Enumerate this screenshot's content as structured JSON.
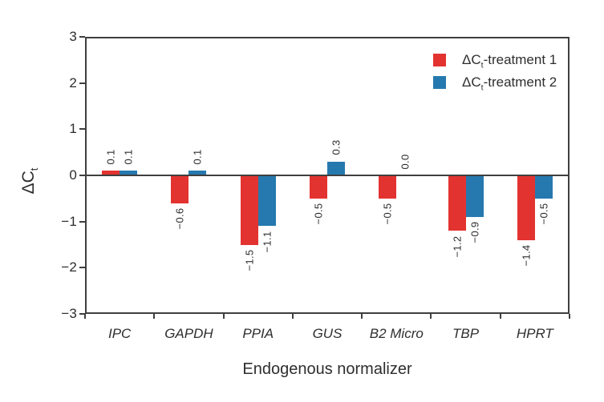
{
  "figure": {
    "background": "#ffffff",
    "axis_color": "#3f3f3f",
    "text_color": "#2e2e2e"
  },
  "chart_data": {
    "type": "bar",
    "title": "",
    "xlabel": "Endogenous normalizer",
    "ylabel": "ΔCt",
    "ylabel_parts": {
      "pre": "ΔC",
      "sub": "t"
    },
    "categories": [
      "IPC",
      "GAPDH",
      "PPIA",
      "GUS",
      "B2 Micro",
      "TBP",
      "HPRT"
    ],
    "series": [
      {
        "name": "ΔCt-treatment 1",
        "label_parts": {
          "pre": "ΔC",
          "sub": "t",
          "post": "-treatment 1"
        },
        "color": "#e23330",
        "values": [
          0.1,
          -0.6,
          -1.5,
          -0.5,
          -0.5,
          -1.2,
          -1.4
        ]
      },
      {
        "name": "ΔCt-treatment 2",
        "label_parts": {
          "pre": "ΔC",
          "sub": "t",
          "post": "-treatment 2"
        },
        "color": "#2579ae",
        "values": [
          0.1,
          0.1,
          -1.1,
          0.3,
          0.0,
          -0.9,
          -0.5
        ]
      }
    ],
    "ylim": [
      -3,
      3
    ],
    "yticks": [
      3,
      2,
      1,
      0,
      -1,
      -2,
      -3
    ],
    "grid": false,
    "legend_position": "top-right",
    "value_labels": true
  }
}
